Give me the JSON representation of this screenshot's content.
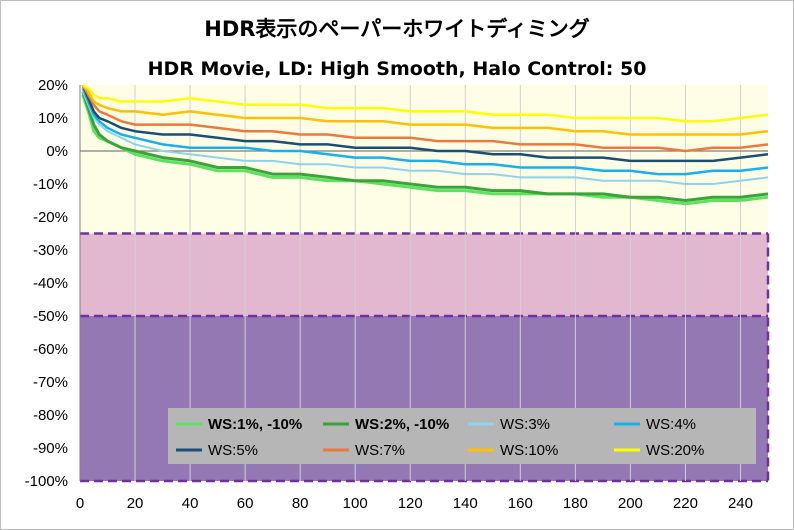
{
  "chart_data": {
    "type": "line",
    "title": "HDR表示のペーパーホワイトディミング",
    "subtitle": "HDR Movie, LD: High Smooth, Halo Control: 50",
    "xlabel": "",
    "ylabel": "",
    "xlim": [
      0,
      250
    ],
    "ylim": [
      -100,
      20
    ],
    "x_ticks": [
      0,
      20,
      40,
      60,
      80,
      100,
      120,
      140,
      160,
      180,
      200,
      220,
      240
    ],
    "y_ticks": [
      20,
      10,
      0,
      -10,
      -20,
      -30,
      -40,
      -50,
      -60,
      -70,
      -80,
      -90,
      -100
    ],
    "y_tick_labels": [
      "20%",
      "10%",
      "0%",
      "-10%",
      "-20%",
      "-30%",
      "-40%",
      "-50%",
      "-60%",
      "-70%",
      "-80%",
      "-90%",
      "-100%"
    ],
    "grid": "vertical",
    "bands": [
      {
        "name": "ok-zone",
        "from": -25,
        "to": 20,
        "color": "#fefee6"
      },
      {
        "name": "warning-zone",
        "from": -50,
        "to": -25,
        "color": "#e1b8d0"
      },
      {
        "name": "bad-zone",
        "from": -100,
        "to": -50,
        "color": "#9478b3"
      }
    ],
    "band_lines": [
      -25,
      -50
    ],
    "band_line_color": "#7030a0",
    "legend_position": "bottom-right",
    "series": [
      {
        "name": "WS:1%, -10%",
        "bold": true,
        "color": "#5ee25e",
        "width": 3,
        "x": [
          1,
          3,
          5,
          7,
          10,
          15,
          20,
          30,
          40,
          50,
          60,
          70,
          80,
          90,
          100,
          110,
          120,
          130,
          140,
          150,
          160,
          170,
          180,
          190,
          200,
          210,
          220,
          230,
          240,
          250
        ],
        "y": [
          17,
          12,
          6,
          4,
          3,
          1,
          -1,
          -3,
          -4,
          -6,
          -6,
          -8,
          -8,
          -9,
          -9,
          -10,
          -11,
          -12,
          -12,
          -13,
          -13,
          -13,
          -13,
          -14,
          -14,
          -15,
          -16,
          -15,
          -15,
          -14
        ]
      },
      {
        "name": "WS:2%, -10%",
        "bold": true,
        "color": "#3aa43a",
        "width": 3,
        "x": [
          1,
          3,
          5,
          7,
          10,
          15,
          20,
          30,
          40,
          50,
          60,
          70,
          80,
          90,
          100,
          110,
          120,
          130,
          140,
          150,
          160,
          170,
          180,
          190,
          200,
          210,
          220,
          230,
          240,
          250
        ],
        "y": [
          18,
          13,
          8,
          5,
          3,
          1,
          0,
          -2,
          -3,
          -5,
          -5,
          -7,
          -7,
          -8,
          -9,
          -9,
          -10,
          -11,
          -11,
          -12,
          -12,
          -13,
          -13,
          -13,
          -14,
          -14,
          -15,
          -14,
          -14,
          -13
        ]
      },
      {
        "name": "WS:3%",
        "bold": false,
        "color": "#8dd3f0",
        "width": 2,
        "x": [
          1,
          3,
          5,
          7,
          10,
          15,
          20,
          30,
          40,
          50,
          60,
          70,
          80,
          90,
          100,
          110,
          120,
          130,
          140,
          150,
          160,
          170,
          180,
          190,
          200,
          210,
          220,
          230,
          240,
          250
        ],
        "y": [
          18,
          14,
          10,
          8,
          6,
          4,
          2,
          0,
          -1,
          -2,
          -3,
          -3,
          -4,
          -4,
          -5,
          -5,
          -6,
          -6,
          -7,
          -7,
          -8,
          -8,
          -8,
          -9,
          -9,
          -9,
          -10,
          -10,
          -9,
          -8
        ]
      },
      {
        "name": "WS:4%",
        "bold": false,
        "color": "#18b0ec",
        "width": 2.5,
        "x": [
          1,
          3,
          5,
          7,
          10,
          15,
          20,
          30,
          40,
          50,
          60,
          70,
          80,
          90,
          100,
          110,
          120,
          130,
          140,
          150,
          160,
          170,
          180,
          190,
          200,
          210,
          220,
          230,
          240,
          250
        ],
        "y": [
          19,
          15,
          11,
          9,
          7,
          5,
          4,
          2,
          1,
          1,
          1,
          0,
          0,
          -1,
          -2,
          -2,
          -3,
          -3,
          -4,
          -4,
          -5,
          -5,
          -5,
          -6,
          -6,
          -7,
          -7,
          -6,
          -6,
          -5
        ]
      },
      {
        "name": "WS:5%",
        "bold": false,
        "color": "#1a4e77",
        "width": 2.5,
        "x": [
          1,
          3,
          5,
          7,
          10,
          15,
          20,
          30,
          40,
          50,
          60,
          70,
          80,
          90,
          100,
          110,
          120,
          130,
          140,
          150,
          160,
          170,
          180,
          190,
          200,
          210,
          220,
          230,
          240,
          250
        ],
        "y": [
          20,
          16,
          12,
          10,
          9,
          7,
          6,
          5,
          5,
          4,
          3,
          3,
          2,
          2,
          1,
          1,
          1,
          0,
          0,
          -1,
          -1,
          -2,
          -2,
          -2,
          -3,
          -3,
          -3,
          -3,
          -2,
          -1
        ]
      },
      {
        "name": "WS:7%",
        "bold": false,
        "color": "#eb7a3c",
        "width": 2.5,
        "x": [
          1,
          3,
          5,
          7,
          10,
          15,
          20,
          30,
          40,
          50,
          60,
          70,
          80,
          90,
          100,
          110,
          120,
          130,
          140,
          150,
          160,
          170,
          180,
          190,
          200,
          210,
          220,
          230,
          240,
          250
        ],
        "y": [
          20,
          17,
          14,
          12,
          11,
          9,
          8,
          8,
          8,
          7,
          6,
          6,
          5,
          5,
          4,
          4,
          4,
          3,
          3,
          3,
          2,
          2,
          2,
          1,
          1,
          1,
          0,
          1,
          1,
          2
        ]
      },
      {
        "name": "WS:10%",
        "bold": false,
        "color": "#ffc000",
        "width": 2.5,
        "x": [
          1,
          3,
          5,
          7,
          10,
          15,
          20,
          30,
          40,
          50,
          60,
          70,
          80,
          90,
          100,
          110,
          120,
          130,
          140,
          150,
          160,
          170,
          180,
          190,
          200,
          210,
          220,
          230,
          240,
          250
        ],
        "y": [
          20,
          18,
          15,
          14,
          13,
          12,
          12,
          11,
          12,
          11,
          10,
          10,
          10,
          9,
          9,
          9,
          8,
          8,
          8,
          7,
          7,
          7,
          6,
          6,
          5,
          5,
          5,
          5,
          5,
          6
        ]
      },
      {
        "name": "WS:20%",
        "bold": false,
        "color": "#ffff00",
        "width": 2.5,
        "x": [
          1,
          3,
          5,
          7,
          10,
          15,
          20,
          30,
          40,
          50,
          60,
          70,
          80,
          90,
          100,
          110,
          120,
          130,
          140,
          150,
          160,
          170,
          180,
          190,
          200,
          210,
          220,
          230,
          240,
          250
        ],
        "y": [
          20,
          19,
          17,
          16,
          16,
          15,
          15,
          15,
          16,
          15,
          14,
          14,
          14,
          13,
          13,
          13,
          12,
          12,
          12,
          11,
          11,
          11,
          10,
          10,
          10,
          10,
          9,
          9,
          10,
          11
        ]
      }
    ]
  }
}
